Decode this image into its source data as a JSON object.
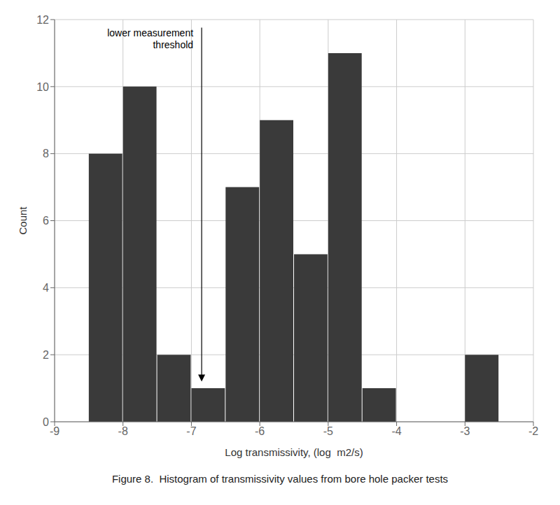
{
  "chart_data": {
    "type": "histogram",
    "xlabel": "Log transmissivity, (log  m2/s)",
    "ylabel": "Count",
    "caption": "Figure 8.  Histogram of transmissivity values from bore hole packer tests",
    "bins": [
      -8.5,
      -8.0,
      -7.5,
      -7.0,
      -6.5,
      -6.0,
      -5.5,
      -5.0,
      -4.5,
      -4.0,
      -3.5,
      -3.0,
      -2.5
    ],
    "values": [
      8,
      10,
      2,
      1,
      7,
      9,
      5,
      11,
      1,
      0,
      0,
      2
    ],
    "color": "#3a3a3a",
    "xlim": [
      -9,
      -2
    ],
    "ylim": [
      0,
      12
    ],
    "xticks": [
      -9,
      -8,
      -7,
      -6,
      -5,
      -4,
      -3,
      -2
    ],
    "yticks": [
      0,
      2,
      4,
      6,
      8,
      10,
      12
    ],
    "grid": true,
    "annotations": [
      {
        "text": "lower measurement\nthreshold",
        "x": -6.85
      }
    ]
  }
}
